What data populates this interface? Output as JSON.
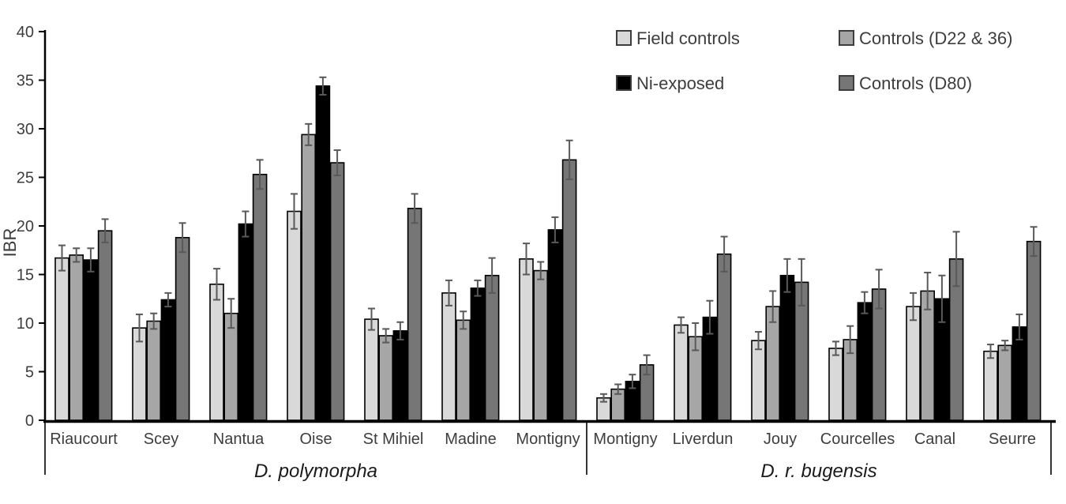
{
  "chart_data": {
    "type": "bar",
    "title": "",
    "xlabel": "",
    "ylabel": "IBR",
    "ylim": [
      0,
      40
    ],
    "ytick_step": 5,
    "grid": false,
    "legend_position": "top-right-two-columns",
    "categories": [
      "Riaucourt",
      "Scey",
      "Nantua",
      "Oise",
      "St Mihiel",
      "Madine",
      "Montigny",
      "Montigny",
      "Liverdun",
      "Jouy",
      "Courcelles",
      "Canal",
      "Seurre"
    ],
    "groups": [
      {
        "label": "D. polymorpha",
        "span": [
          0,
          6
        ]
      },
      {
        "label": "D. r. bugensis",
        "span": [
          7,
          12
        ]
      }
    ],
    "series": [
      {
        "name": "Field controls",
        "color": "#d9d9d9",
        "values": [
          16.7,
          9.5,
          14.0,
          21.5,
          10.4,
          13.1,
          16.6,
          2.3,
          9.8,
          8.2,
          7.4,
          11.7,
          7.1
        ],
        "errors": [
          1.3,
          1.4,
          1.6,
          1.8,
          1.1,
          1.3,
          1.6,
          0.4,
          0.8,
          0.9,
          0.7,
          1.4,
          0.7
        ]
      },
      {
        "name": "Controls (D22 & 36)",
        "color": "#a6a6a6",
        "values": [
          17.0,
          10.2,
          11.0,
          29.4,
          8.7,
          10.3,
          15.4,
          3.2,
          8.6,
          11.7,
          8.3,
          13.3,
          7.7
        ],
        "errors": [
          0.7,
          0.8,
          1.5,
          1.1,
          0.7,
          0.9,
          0.9,
          0.5,
          1.4,
          1.6,
          1.4,
          1.9,
          0.5
        ]
      },
      {
        "name": "Ni-exposed",
        "color": "#000000",
        "values": [
          16.5,
          12.4,
          20.2,
          34.4,
          9.2,
          13.6,
          19.6,
          4.0,
          10.6,
          14.9,
          12.1,
          12.5,
          9.6
        ],
        "errors": [
          1.2,
          0.7,
          1.3,
          0.9,
          0.9,
          0.8,
          1.3,
          0.7,
          1.7,
          1.7,
          1.1,
          2.4,
          1.3
        ]
      },
      {
        "name": "Controls (D80)",
        "color": "#767676",
        "values": [
          19.5,
          18.8,
          25.3,
          26.5,
          21.8,
          14.9,
          26.8,
          5.7,
          17.1,
          14.2,
          13.5,
          16.6,
          18.4
        ],
        "errors": [
          1.2,
          1.5,
          1.5,
          1.3,
          1.5,
          1.8,
          2.0,
          1.0,
          1.8,
          2.4,
          2.0,
          2.8,
          1.5
        ]
      }
    ],
    "bar_order_in_group": [
      "Field controls",
      "Controls (D22 & 36)",
      "Ni-exposed",
      "Controls (D80)"
    ],
    "colors": {
      "axis": "#000000",
      "error_bar": "#595959",
      "bar_outline": "#000000",
      "text": "#3d3d3d"
    }
  }
}
